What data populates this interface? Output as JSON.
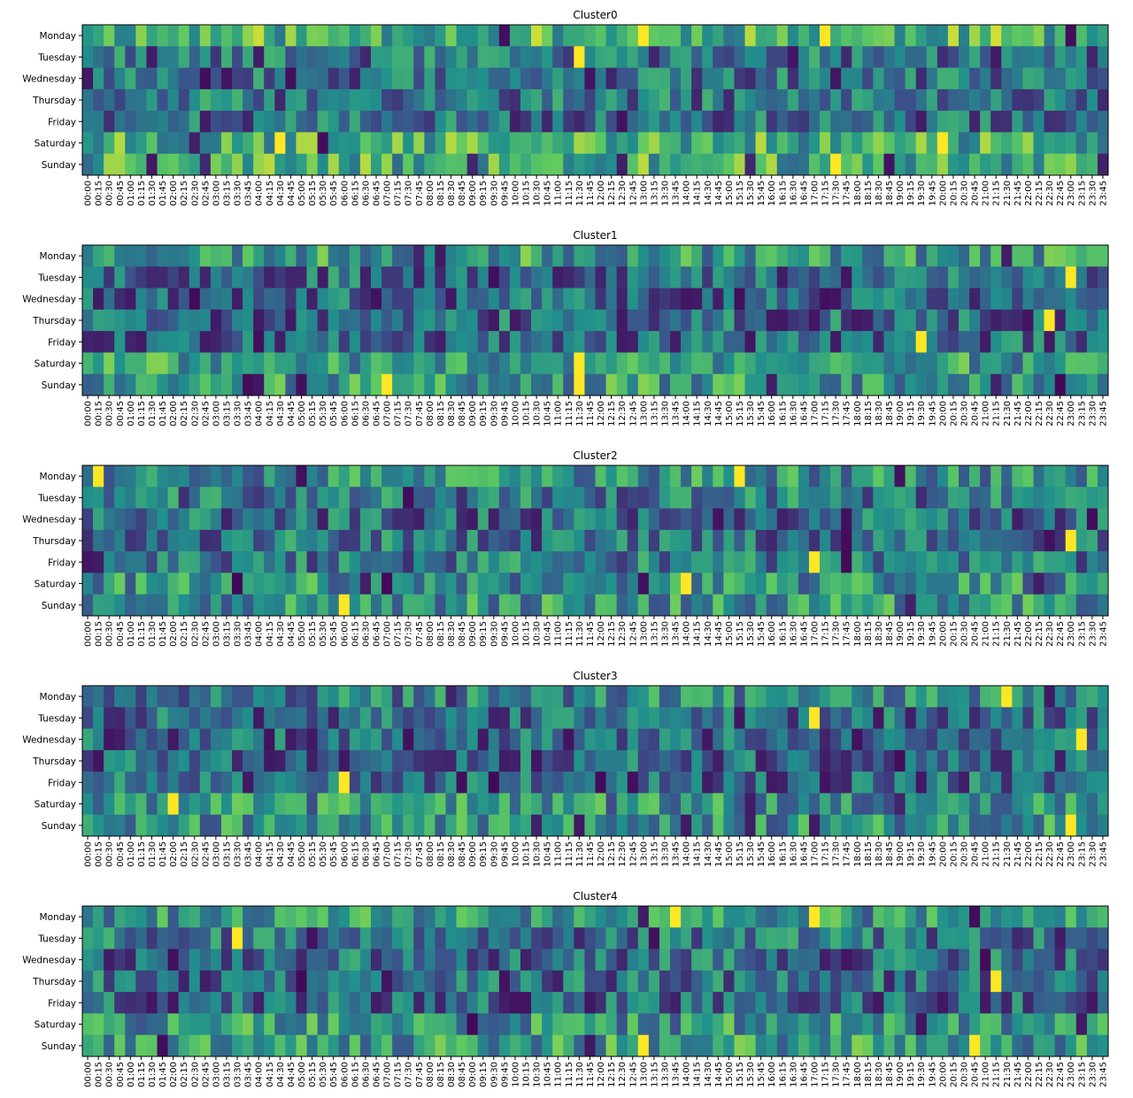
{
  "chart_data": {
    "type": "heatmap",
    "days": [
      "Monday",
      "Tuesday",
      "Wednesday",
      "Thursday",
      "Friday",
      "Saturday",
      "Sunday"
    ],
    "times": [
      "00:00",
      "00:15",
      "00:30",
      "00:45",
      "01:00",
      "01:15",
      "01:30",
      "01:45",
      "02:00",
      "02:15",
      "02:30",
      "02:45",
      "03:00",
      "03:15",
      "03:30",
      "03:45",
      "04:00",
      "04:15",
      "04:30",
      "04:45",
      "05:00",
      "05:15",
      "05:30",
      "05:45",
      "06:00",
      "06:15",
      "06:30",
      "06:45",
      "07:00",
      "07:15",
      "07:30",
      "07:45",
      "08:00",
      "08:15",
      "08:30",
      "08:45",
      "09:00",
      "09:15",
      "09:30",
      "09:45",
      "10:00",
      "10:15",
      "10:30",
      "10:45",
      "11:00",
      "11:15",
      "11:30",
      "11:45",
      "12:00",
      "12:15",
      "12:30",
      "12:45",
      "13:00",
      "13:15",
      "13:30",
      "13:45",
      "14:00",
      "14:15",
      "14:30",
      "14:45",
      "15:00",
      "15:15",
      "15:30",
      "15:45",
      "16:00",
      "16:15",
      "16:30",
      "16:45",
      "17:00",
      "17:15",
      "17:30",
      "17:45",
      "18:00",
      "18:15",
      "18:30",
      "18:45",
      "19:00",
      "19:15",
      "19:30",
      "19:45",
      "20:00",
      "20:15",
      "20:30",
      "20:45",
      "21:00",
      "21:15",
      "21:30",
      "21:45",
      "22:00",
      "22:15",
      "22:30",
      "22:45",
      "23:00",
      "23:15",
      "23:30",
      "23:45"
    ],
    "colormap": [
      "#440154",
      "#3b528b",
      "#21918c",
      "#5ec962",
      "#fde725"
    ],
    "panels": [
      {
        "title": "Cluster0",
        "seed": 11,
        "dayBias": [
          0.66,
          0.38,
          0.36,
          0.38,
          0.36,
          0.62,
          0.62
        ],
        "hot": [
          [
            0,
            69
          ],
          [
            1,
            46
          ],
          [
            5,
            18
          ],
          [
            5,
            80
          ],
          [
            6,
            70
          ],
          [
            0,
            52
          ]
        ]
      },
      {
        "title": "Cluster1",
        "seed": 23,
        "dayBias": [
          0.55,
          0.36,
          0.32,
          0.34,
          0.34,
          0.55,
          0.55
        ],
        "hot": [
          [
            6,
            28
          ],
          [
            5,
            46
          ],
          [
            6,
            46
          ],
          [
            1,
            92
          ],
          [
            3,
            90
          ],
          [
            4,
            78
          ]
        ]
      },
      {
        "title": "Cluster2",
        "seed": 37,
        "dayBias": [
          0.5,
          0.4,
          0.36,
          0.38,
          0.4,
          0.5,
          0.52
        ],
        "hot": [
          [
            0,
            61
          ],
          [
            5,
            56
          ],
          [
            3,
            92
          ],
          [
            4,
            68
          ],
          [
            0,
            1
          ],
          [
            6,
            24
          ]
        ]
      },
      {
        "title": "Cluster3",
        "seed": 49,
        "dayBias": [
          0.45,
          0.34,
          0.32,
          0.32,
          0.34,
          0.5,
          0.5
        ],
        "hot": [
          [
            5,
            8
          ],
          [
            4,
            24
          ],
          [
            2,
            93
          ],
          [
            0,
            86
          ],
          [
            6,
            92
          ],
          [
            1,
            68
          ]
        ]
      },
      {
        "title": "Cluster4",
        "seed": 61,
        "dayBias": [
          0.52,
          0.38,
          0.36,
          0.36,
          0.34,
          0.52,
          0.54
        ],
        "hot": [
          [
            6,
            83
          ],
          [
            0,
            68
          ],
          [
            3,
            85
          ],
          [
            1,
            14
          ],
          [
            0,
            55
          ],
          [
            6,
            52
          ]
        ]
      }
    ]
  }
}
